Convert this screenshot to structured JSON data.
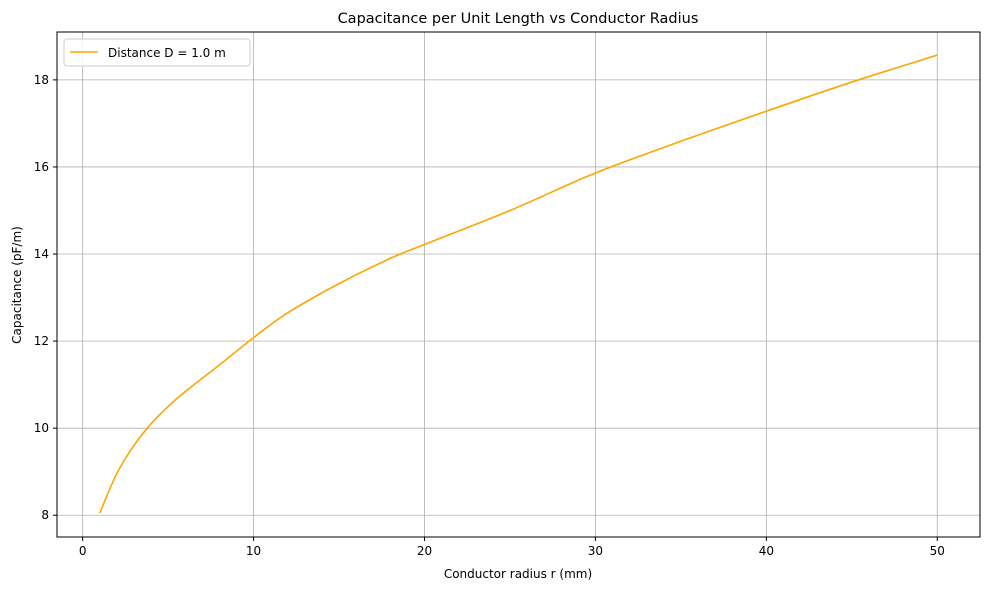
{
  "chart_data": {
    "type": "line",
    "title": "Capacitance per Unit Length vs Conductor Radius",
    "xlabel": "Conductor radius r (mm)",
    "ylabel": "Capacitance (pF/m)",
    "xlim": [
      -1.5,
      52.5
    ],
    "ylim": [
      7.5,
      19.1
    ],
    "xticks": [
      0,
      10,
      20,
      30,
      40,
      50
    ],
    "yticks": [
      8,
      10,
      12,
      14,
      16,
      18
    ],
    "grid": true,
    "legend_position": "upper left",
    "series": [
      {
        "name": "Distance D = 1.0 m",
        "color": "#FFA500",
        "x": [
          1,
          2,
          3,
          4,
          5,
          6,
          8,
          10,
          12,
          15,
          18,
          20,
          25,
          30,
          35,
          40,
          45,
          50
        ],
        "values": [
          8.05,
          8.96,
          9.6,
          10.1,
          10.5,
          10.84,
          11.45,
          12.08,
          12.65,
          13.32,
          13.9,
          14.22,
          15.0,
          15.86,
          16.59,
          17.28,
          17.95,
          18.57
        ]
      }
    ]
  }
}
